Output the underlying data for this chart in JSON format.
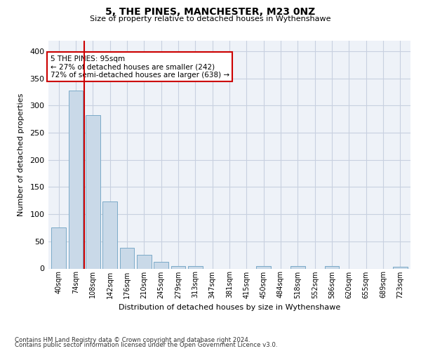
{
  "title": "5, THE PINES, MANCHESTER, M23 0NZ",
  "subtitle": "Size of property relative to detached houses in Wythenshawe",
  "xlabel": "Distribution of detached houses by size in Wythenshawe",
  "ylabel": "Number of detached properties",
  "footnote1": "Contains HM Land Registry data © Crown copyright and database right 2024.",
  "footnote2": "Contains public sector information licensed under the Open Government Licence v3.0.",
  "bar_labels": [
    "40sqm",
    "74sqm",
    "108sqm",
    "142sqm",
    "176sqm",
    "210sqm",
    "245sqm",
    "279sqm",
    "313sqm",
    "347sqm",
    "381sqm",
    "415sqm",
    "450sqm",
    "484sqm",
    "518sqm",
    "552sqm",
    "586sqm",
    "620sqm",
    "655sqm",
    "689sqm",
    "723sqm"
  ],
  "bar_values": [
    75,
    328,
    283,
    123,
    38,
    25,
    12,
    5,
    5,
    0,
    0,
    0,
    5,
    0,
    5,
    0,
    4,
    0,
    0,
    0,
    3
  ],
  "bar_color": "#c9d9e8",
  "bar_edge_color": "#7aaac8",
  "grid_color": "#c8d0e0",
  "bg_color": "#eef2f8",
  "vline_x": 1.5,
  "vline_color": "#cc0000",
  "annotation_text": "5 THE PINES: 95sqm\n← 27% of detached houses are smaller (242)\n72% of semi-detached houses are larger (638) →",
  "annotation_box_color": "#ffffff",
  "annotation_box_edge": "#cc0000",
  "ylim": [
    0,
    420
  ],
  "yticks": [
    0,
    50,
    100,
    150,
    200,
    250,
    300,
    350,
    400
  ]
}
